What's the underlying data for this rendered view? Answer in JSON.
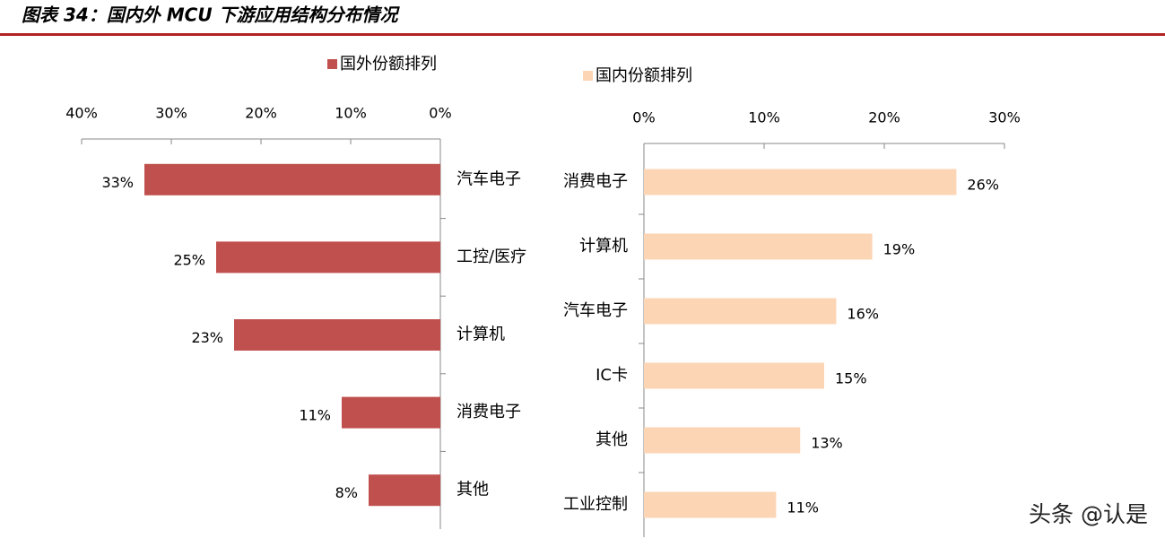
{
  "title": "图表 34：国内外 MCU 下游应用结构分布情况",
  "watermark": "头条 @认是",
  "chart_data": [
    {
      "type": "bar",
      "orientation": "horizontal",
      "categories": [
        "汽车电子",
        "工控/医疗",
        "计算机",
        "消费电子",
        "其他"
      ],
      "series": [
        {
          "name": "国外份额排列",
          "color": "#c0504d",
          "values": [
            33,
            25,
            23,
            11,
            8
          ],
          "value_labels": [
            "33%",
            "25%",
            "23%",
            "11%",
            "8%"
          ]
        }
      ],
      "xlim": [
        40,
        0
      ],
      "xticks": [
        {
          "value": 40,
          "label": "40%"
        },
        {
          "value": 30,
          "label": "30%"
        },
        {
          "value": 20,
          "label": "20%"
        },
        {
          "value": 10,
          "label": "10%"
        },
        {
          "value": 0,
          "label": "0%"
        }
      ],
      "grid": false,
      "legend": "top"
    },
    {
      "type": "bar",
      "orientation": "horizontal",
      "categories": [
        "消费电子",
        "计算机",
        "汽车电子",
        "IC卡",
        "其他",
        "工业控制"
      ],
      "series": [
        {
          "name": "国内份额排列",
          "color": "#fcd5b5",
          "values": [
            26,
            19,
            16,
            15,
            13,
            11
          ],
          "value_labels": [
            "26%",
            "19%",
            "16%",
            "15%",
            "13%",
            "11%"
          ]
        }
      ],
      "xlim": [
        0,
        30
      ],
      "xticks": [
        {
          "value": 0,
          "label": "0%"
        },
        {
          "value": 10,
          "label": "10%"
        },
        {
          "value": 20,
          "label": "20%"
        },
        {
          "value": 30,
          "label": "30%"
        }
      ],
      "grid": false,
      "legend": "top"
    }
  ]
}
